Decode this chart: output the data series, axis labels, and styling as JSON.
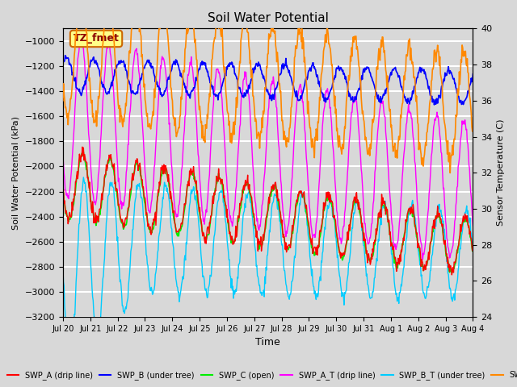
{
  "title": "Soil Water Potential",
  "xlabel": "Time",
  "ylabel_left": "Soil Water Potential (kPa)",
  "ylabel_right": "Sensor Temperature (C)",
  "annotation": "TZ_fmet",
  "ylim_left": [
    -3200,
    -900
  ],
  "ylim_right": [
    24,
    40
  ],
  "yticks_left": [
    -3200,
    -3000,
    -2800,
    -2600,
    -2400,
    -2200,
    -2000,
    -1800,
    -1600,
    -1400,
    -1200,
    -1000
  ],
  "yticks_right": [
    24,
    26,
    28,
    30,
    32,
    34,
    36,
    38,
    40
  ],
  "background_color": "#d8d8d8",
  "plot_bg_color": "#d8d8d8",
  "grid_color": "#ffffff",
  "series": {
    "SWP_A": {
      "color": "#ff0000",
      "label": "SWP_A (drip line)"
    },
    "SWP_B": {
      "color": "#0000ff",
      "label": "SWP_B (under tree)"
    },
    "SWP_C": {
      "color": "#00ee00",
      "label": "SWP_C (open)"
    },
    "SWP_A_T": {
      "color": "#ff00ff",
      "label": "SWP_A_T (drip line)"
    },
    "SWP_B_T": {
      "color": "#00ccff",
      "label": "SWP_B_T (under tree)"
    },
    "SWP_C_T": {
      "color": "#ff8800",
      "label": "SWI"
    }
  },
  "tick_labels": [
    "Jul 20",
    "Jul 21",
    "Jul 22",
    "Jul 23",
    "Jul 24",
    "Jul 25",
    "Jul 26",
    "Jul 27",
    "Jul 28",
    "Jul 29",
    "Jul 30",
    "Jul 31",
    "Aug 1",
    "Aug 2",
    "Aug 3",
    "Aug 4"
  ],
  "n_days": 15
}
